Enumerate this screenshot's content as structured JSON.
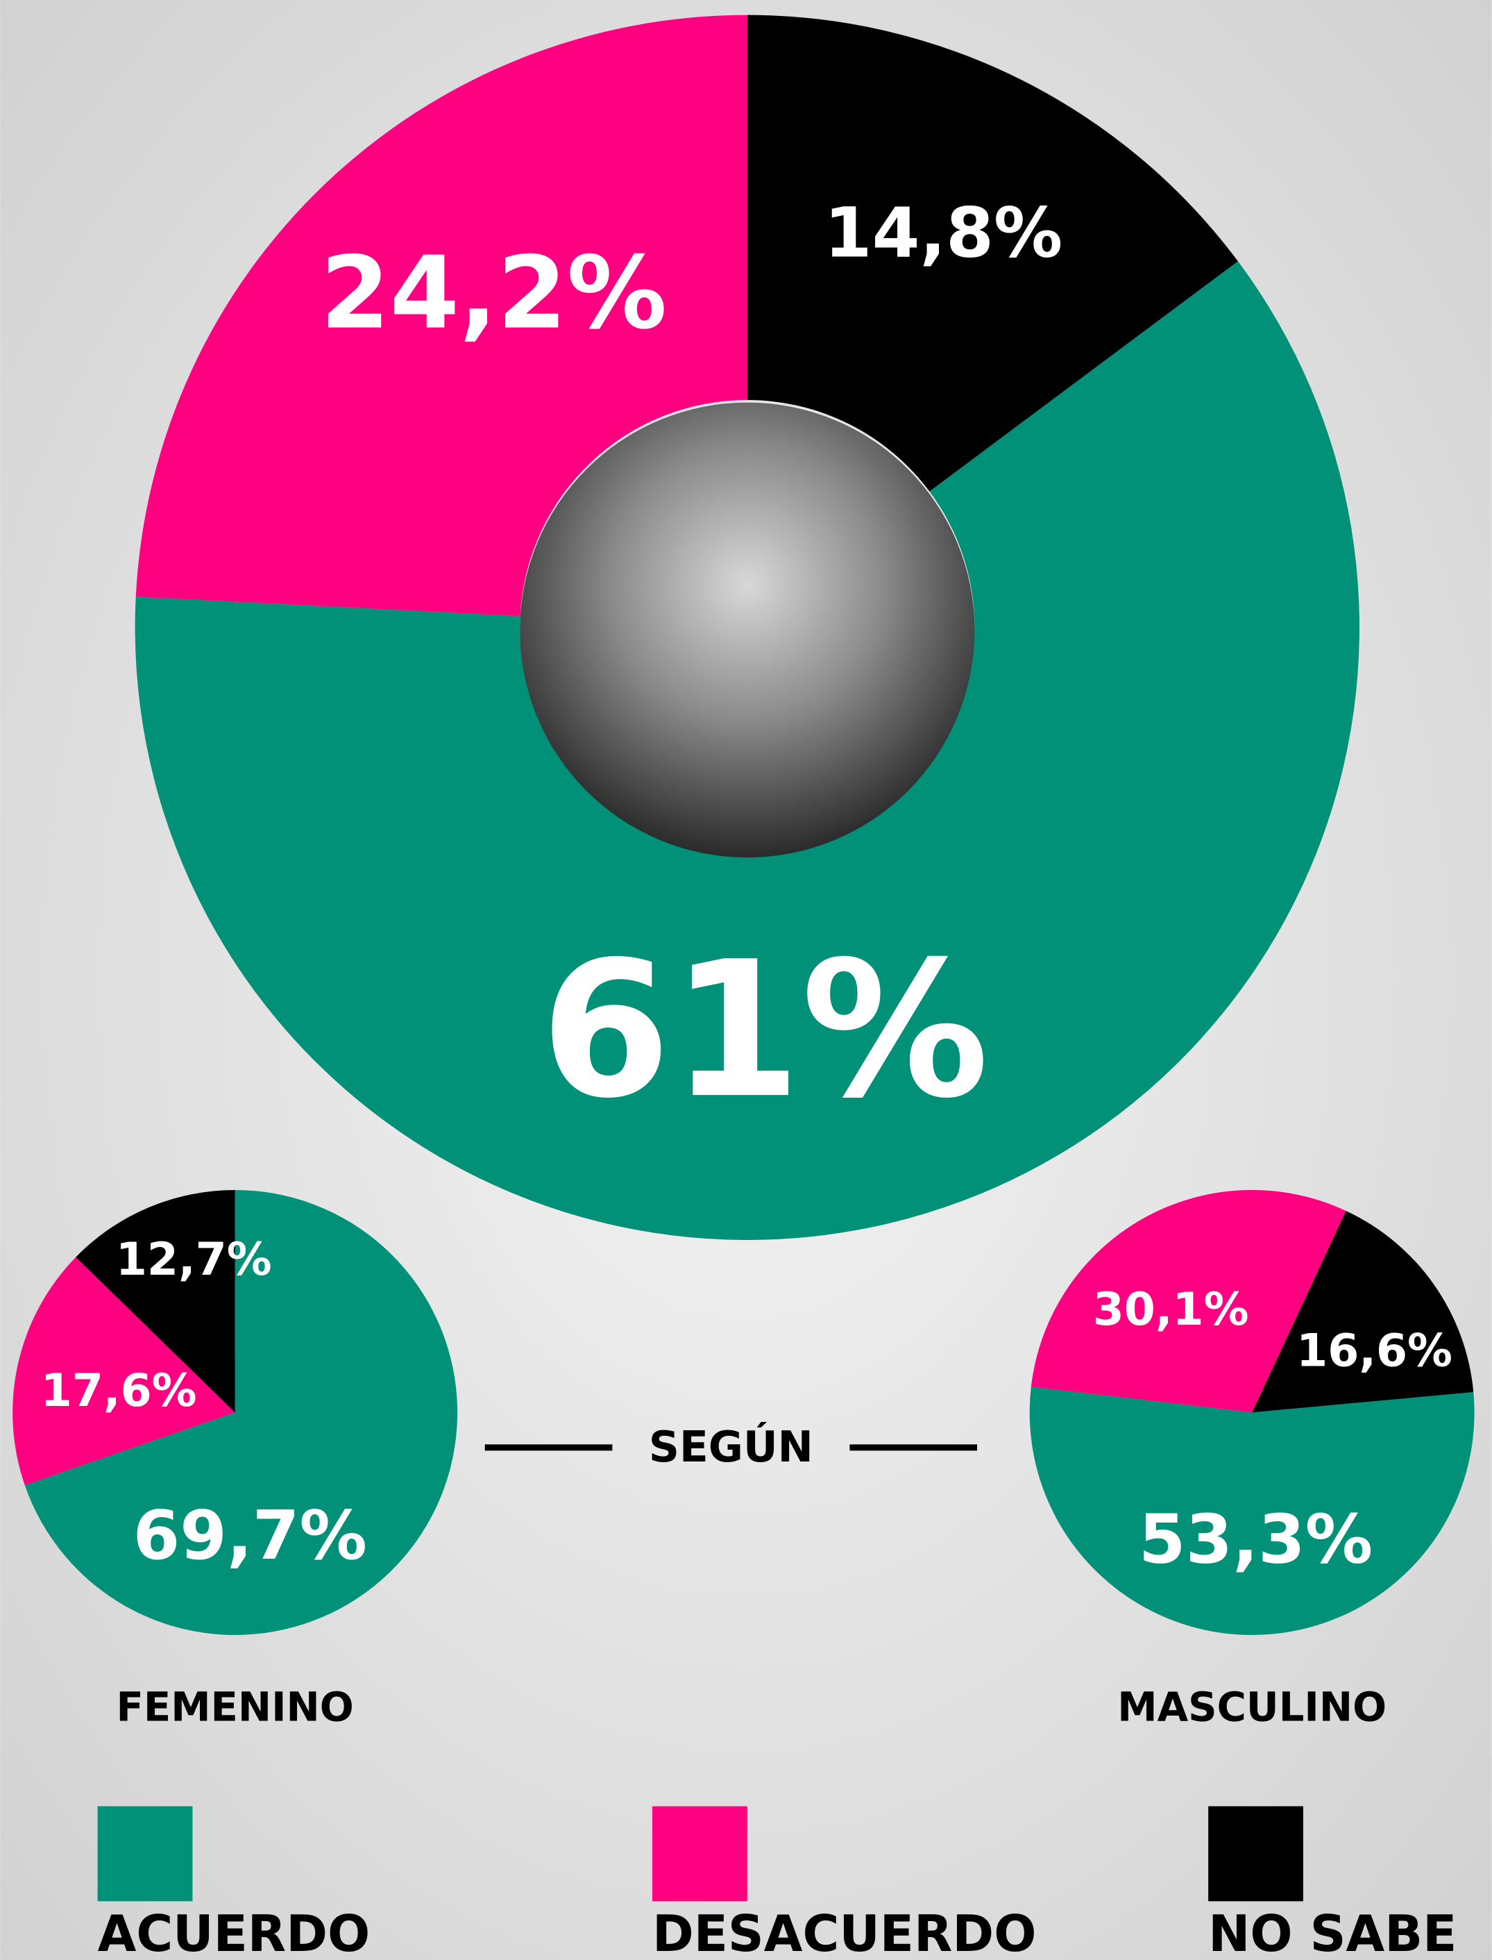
{
  "chart_data": [
    {
      "type": "donut",
      "categories": [
        "ACUERDO",
        "DESACUERDO",
        "NO SABE"
      ],
      "colors": [
        "#009178",
        "#ff0080",
        "#000000"
      ],
      "values": [
        61,
        24.2,
        14.8
      ],
      "value_labels": [
        "61%",
        "24,2%",
        "14,8%"
      ]
    },
    {
      "type": "pie",
      "title": "FEMENINO",
      "values": [
        69.7,
        17.6,
        12.7
      ],
      "value_labels": [
        "69,7%",
        "17,6%",
        "12,7%"
      ]
    },
    {
      "type": "pie",
      "title": "MASCULINO",
      "values": [
        53.3,
        30.1,
        16.6
      ],
      "value_labels": [
        "53,3%",
        "30,1%",
        "16,6%"
      ]
    }
  ],
  "connector_label": "SEGÚN"
}
